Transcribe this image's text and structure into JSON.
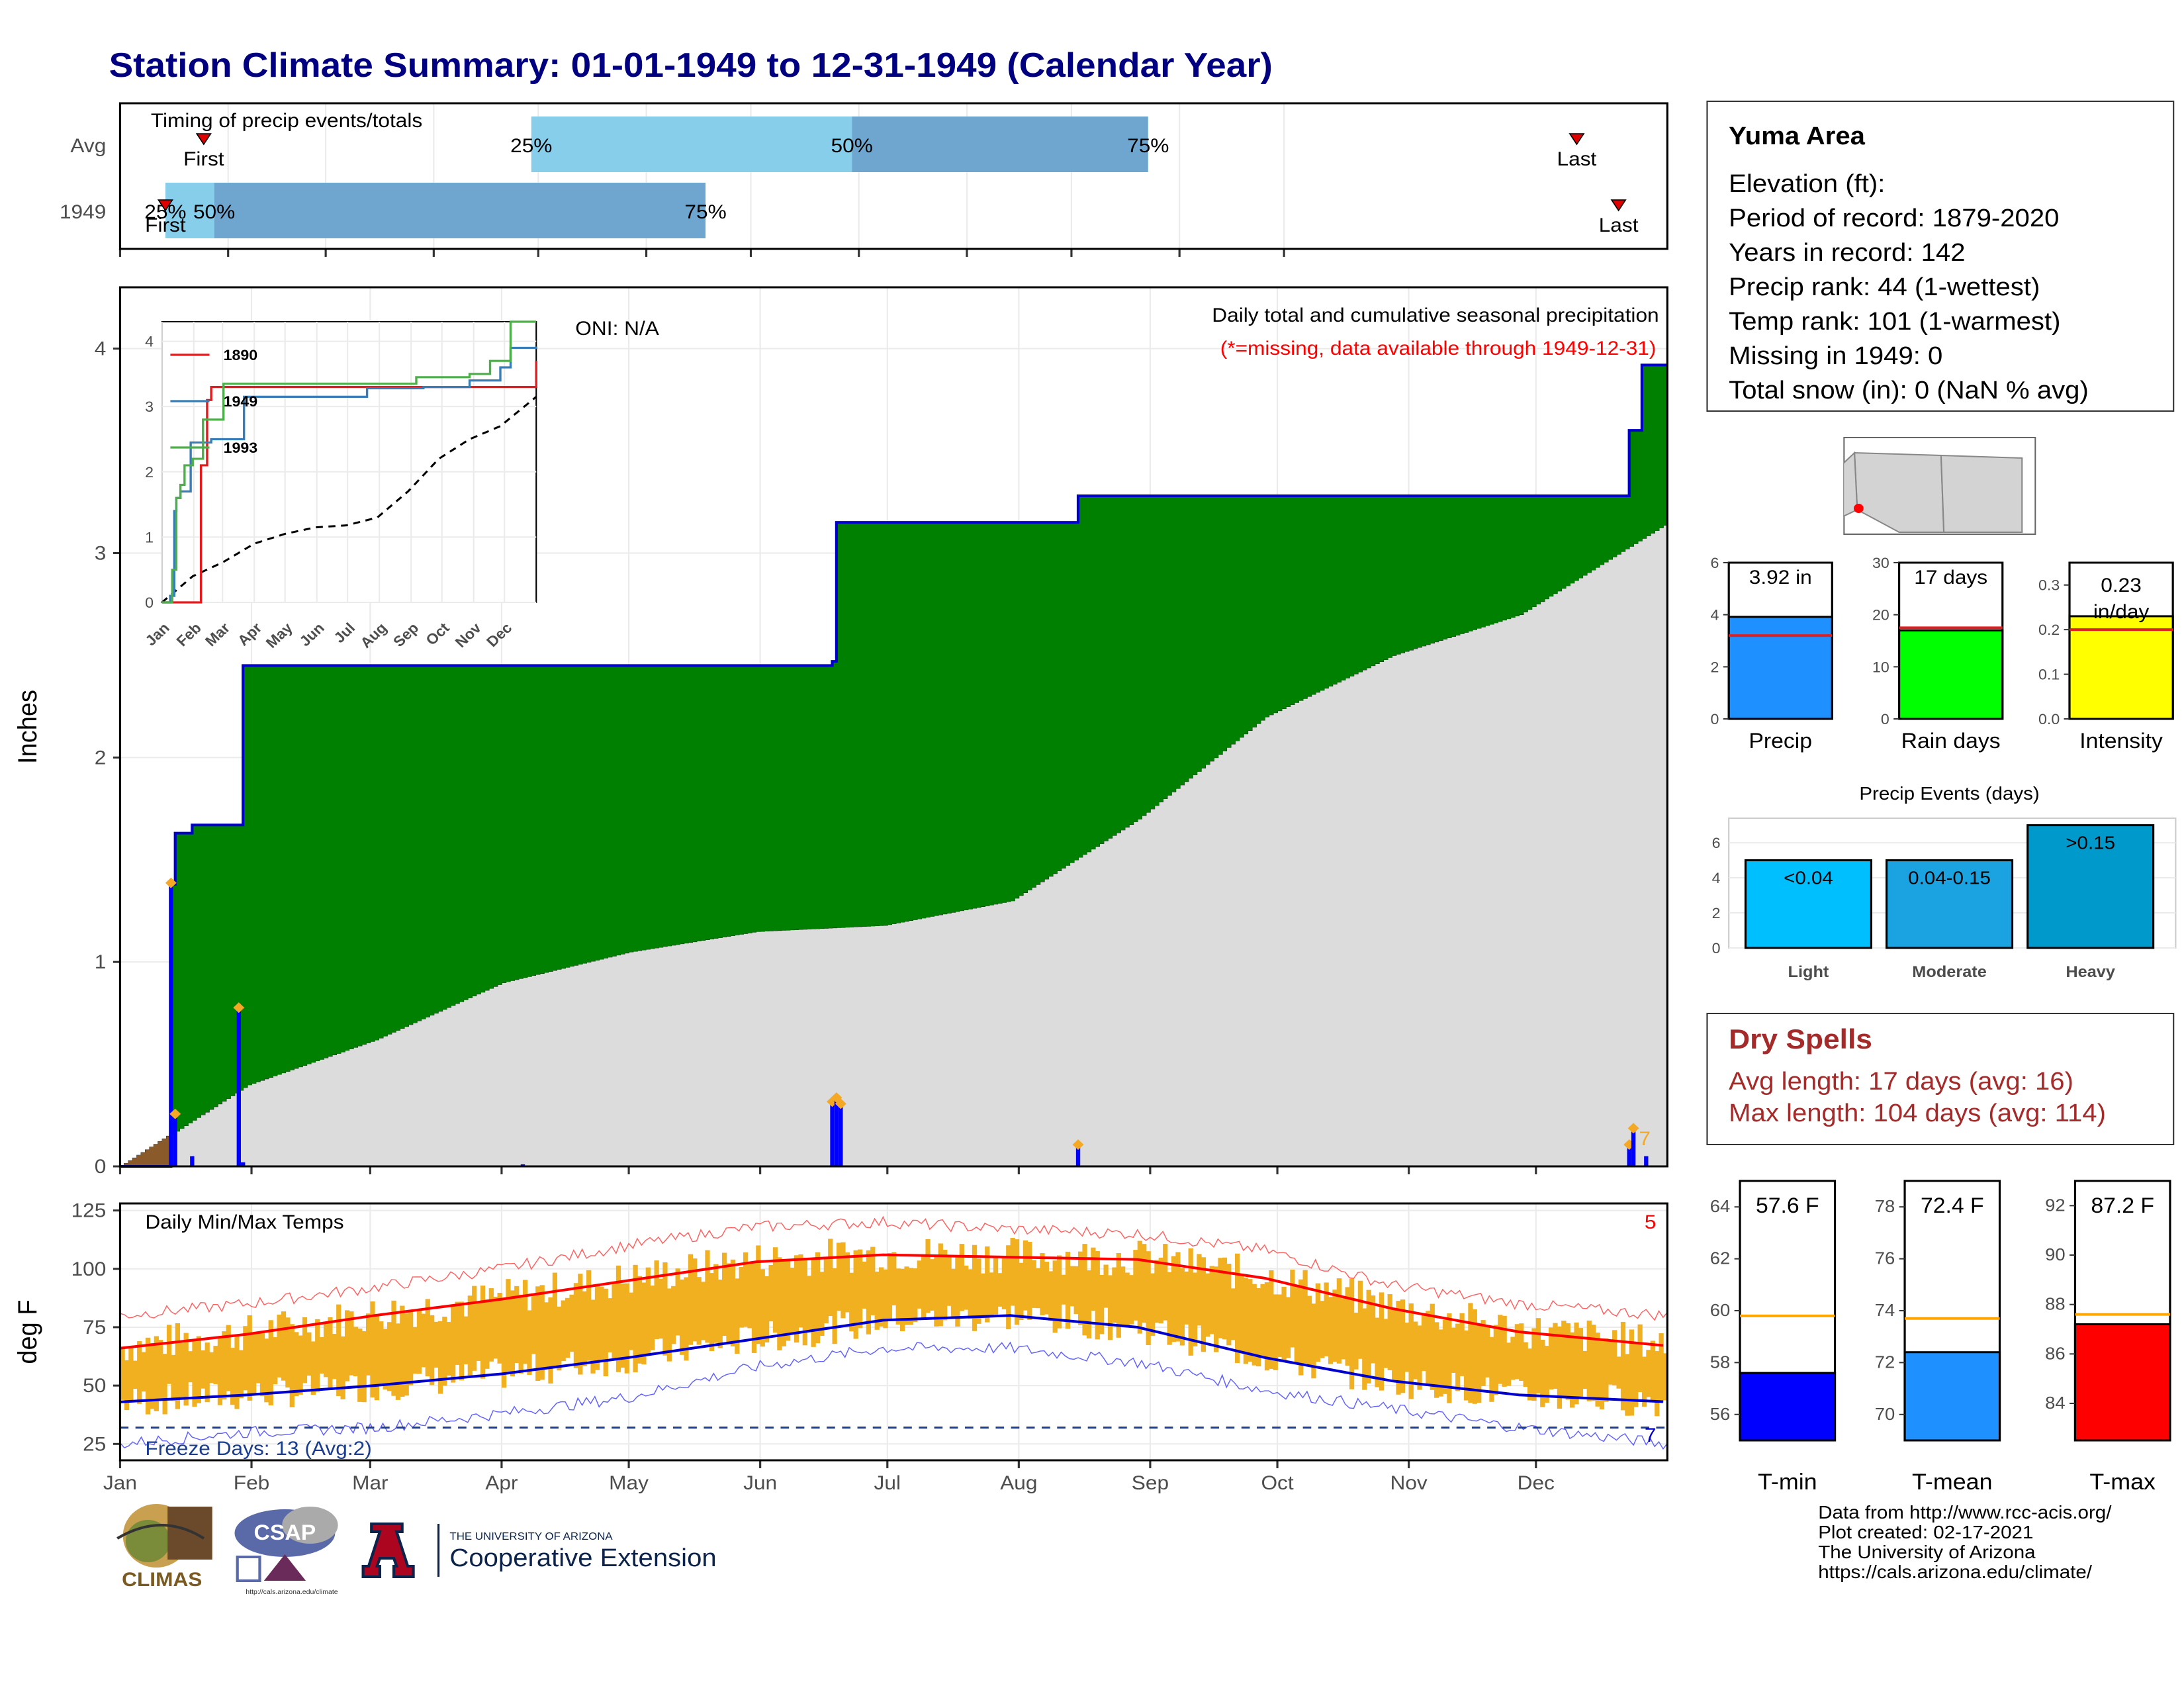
{
  "title": "Station Climate Summary: 01-01-1949 to 12-31-1949 (Calendar Year)",
  "months": [
    "Jan",
    "Feb",
    "Mar",
    "Apr",
    "May",
    "Jun",
    "Jul",
    "Aug",
    "Sep",
    "Oct",
    "Nov",
    "Dec"
  ],
  "timing": {
    "label": "Timing of precip events/totals",
    "rows": [
      "Avg",
      "1949"
    ],
    "first": "First",
    "last": "Last",
    "p25": "25%",
    "p50": "50%",
    "p75": "75%",
    "avg_days": {
      "first": 24,
      "p25": 118,
      "p50": 210,
      "p75": 295,
      "last": 418
    },
    "y1949_days": {
      "first": 13,
      "p25": 13,
      "p50": 27,
      "p75": 168,
      "last": 430
    },
    "colors": {
      "light": "#87ceeb",
      "mid": "#6ea6cf",
      "marker": "#e00000"
    }
  },
  "info": {
    "station": "Yuma Area",
    "lines": [
      "Elevation (ft):",
      "Period of record: 1879-2020",
      "Years in record: 142",
      "Precip rank: 44 (1-wettest)",
      "Temp rank: 101 (1-warmest)",
      "Missing in 1949: 0",
      "Total snow (in): 0 (NaN % avg)"
    ]
  },
  "precip_main": {
    "ylabel": "Inches",
    "oni": "ONI: N/A",
    "heading": "Daily total and cumulative seasonal precipitation",
    "note": "(*=missing, data available through 1949-12-31)",
    "corner_count": "7",
    "yticks": [
      "0",
      "1",
      "2",
      "3",
      "4"
    ],
    "colors": {
      "wet": "#008000",
      "normal": "#dcdcdc",
      "dry": "#8b5a2b",
      "line": "#0000cd",
      "bars": "#0000ff",
      "diamond": "#f4a824"
    }
  },
  "inset": {
    "years": [
      "1890",
      "1949",
      "1993"
    ],
    "colors": [
      "#e41a1c",
      "#377eb8",
      "#4daf4a"
    ],
    "yticks": [
      "0",
      "1",
      "2",
      "3",
      "4"
    ]
  },
  "temps": {
    "ylabel": "deg F",
    "label": "Daily Min/Max Temps",
    "freeze": "Freeze Days: 13 (Avg:2)",
    "corner_count": "5",
    "corner_count_low": "7",
    "yticks": [
      "25",
      "50",
      "75",
      "100",
      "125"
    ],
    "colors": {
      "range": "#f0b020",
      "max": "#ff0000",
      "min": "#0000cd",
      "freeze": "#1a3d8f"
    }
  },
  "small_bars": [
    {
      "label": "Precip",
      "value_text": "3.92 in",
      "value": 3.92,
      "normal": 3.2,
      "max": 6,
      "yticks": [
        "0",
        "2",
        "4",
        "6"
      ],
      "color": "#1e90ff"
    },
    {
      "label": "Rain days",
      "value_text": "17 days",
      "value": 17,
      "normal": 17.5,
      "max": 30,
      "yticks": [
        "0",
        "10",
        "20",
        "30"
      ],
      "color": "#00ff00"
    },
    {
      "label": "Intensity",
      "value_text": "0.23 in/day",
      "value": 0.23,
      "normal": 0.2,
      "max": 0.35,
      "yticks": [
        "0.0",
        "0.1",
        "0.2",
        "0.3"
      ],
      "color": "#ffff00"
    }
  ],
  "events": {
    "title": "Precip Events (days)",
    "yticks": [
      "0",
      "2",
      "4",
      "6"
    ],
    "bars": [
      {
        "label": "Light",
        "range": "<0.04",
        "value": 5,
        "color": "#00bfff"
      },
      {
        "label": "Moderate",
        "range": "0.04-0.15",
        "value": 5,
        "color": "#1aa3e0"
      },
      {
        "label": "Heavy",
        "range": ">0.15",
        "value": 7,
        "color": "#0099cc"
      }
    ]
  },
  "dry": {
    "title": "Dry Spells",
    "avg": "Avg length: 17 days (avg: 16)",
    "max": "Max length: 104 days (avg: 114)"
  },
  "temp_bars": [
    {
      "label": "T-min",
      "value_text": "57.6 F",
      "value": 57.6,
      "normal": 59.8,
      "min": 55,
      "max": 65,
      "yticks": [
        "56",
        "58",
        "60",
        "62",
        "64"
      ],
      "color": "#0000ff"
    },
    {
      "label": "T-mean",
      "value_text": "72.4 F",
      "value": 72.4,
      "normal": 73.7,
      "min": 69,
      "max": 79,
      "yticks": [
        "70",
        "72",
        "74",
        "76",
        "78"
      ],
      "color": "#1e90ff"
    },
    {
      "label": "T-max",
      "value_text": "87.2 F",
      "value": 87.2,
      "normal": 87.6,
      "min": 82.5,
      "max": 93,
      "yticks": [
        "84",
        "86",
        "88",
        "90",
        "92"
      ],
      "color": "#ff0000"
    }
  ],
  "footer": [
    "Data from http://www.rcc-acis.org/",
    "Plot created: 02-17-2021",
    "The University of Arizona",
    "https://cals.arizona.edu/climate/"
  ],
  "logos": {
    "climas": "CLIMAS",
    "csap": "CSAP",
    "csap_url": "http://cals.arizona.edu/climate",
    "ua_small": "THE UNIVERSITY OF ARIZONA",
    "ua_big": "Cooperative Extension"
  },
  "chart_data": [
    {
      "type": "bar",
      "title": "Timing of precip events/totals",
      "categories": [
        "Avg",
        "1949"
      ],
      "series": [
        {
          "name": "First",
          "values": [
            24,
            13
          ]
        },
        {
          "name": "25%",
          "values": [
            118,
            13
          ]
        },
        {
          "name": "50%",
          "values": [
            210,
            27
          ]
        },
        {
          "name": "75%",
          "values": [
            295,
            168
          ]
        },
        {
          "name": "Last",
          "values": [
            418,
            430
          ]
        }
      ]
    },
    {
      "type": "area",
      "title": "Daily total and cumulative seasonal precipitation",
      "ylabel": "Inches",
      "ylim": [
        0,
        4.3
      ],
      "x_days_1949_cumulative": [
        0,
        11,
        12,
        13,
        17,
        28,
        29,
        168,
        169,
        226,
        356,
        359,
        365
      ],
      "cumulative_1949": [
        0,
        0,
        1.38,
        1.63,
        1.67,
        1.67,
        2.45,
        2.47,
        3.15,
        3.28,
        3.6,
        3.92,
        3.92
      ],
      "x_days_normal": [
        0,
        30,
        60,
        90,
        120,
        150,
        180,
        210,
        240,
        270,
        300,
        330,
        365
      ],
      "cumulative_normal": [
        0,
        0.4,
        0.62,
        0.9,
        1.05,
        1.15,
        1.18,
        1.3,
        1.7,
        2.2,
        2.5,
        2.7,
        3.15
      ],
      "daily_totals": [
        {
          "day": 12,
          "value": 1.38
        },
        {
          "day": 13,
          "value": 0.25
        },
        {
          "day": 17,
          "value": 0.05
        },
        {
          "day": 28,
          "value": 0.77
        },
        {
          "day": 29,
          "value": 0.02
        },
        {
          "day": 95,
          "value": 0.01
        },
        {
          "day": 168,
          "value": 0.31
        },
        {
          "day": 169,
          "value": 0.33
        },
        {
          "day": 170,
          "value": 0.3
        },
        {
          "day": 226,
          "value": 0.1
        },
        {
          "day": 356,
          "value": 0.1
        },
        {
          "day": 357,
          "value": 0.18
        },
        {
          "day": 360,
          "value": 0.05
        }
      ]
    },
    {
      "type": "line",
      "title": "Daily Min/Max Temps",
      "ylabel": "deg F",
      "ylim": [
        18,
        128
      ],
      "x_days": [
        0,
        30,
        60,
        90,
        120,
        150,
        180,
        210,
        240,
        270,
        300,
        330,
        365
      ],
      "normal_max": [
        66,
        72,
        80,
        87,
        95,
        103,
        106,
        105,
        104,
        96,
        83,
        73,
        67
      ],
      "normal_min": [
        43,
        46,
        50,
        55,
        62,
        70,
        78,
        80,
        75,
        62,
        52,
        46,
        43
      ],
      "record_max": [
        80,
        85,
        92,
        100,
        110,
        118,
        120,
        117,
        115,
        108,
        93,
        85,
        80
      ],
      "record_min": [
        25,
        30,
        32,
        38,
        45,
        58,
        66,
        66,
        60,
        48,
        40,
        32,
        25
      ]
    },
    {
      "type": "bar",
      "title": "Precip Events (days)",
      "categories": [
        "Light",
        "Moderate",
        "Heavy"
      ],
      "values": [
        5,
        5,
        7
      ]
    }
  ]
}
